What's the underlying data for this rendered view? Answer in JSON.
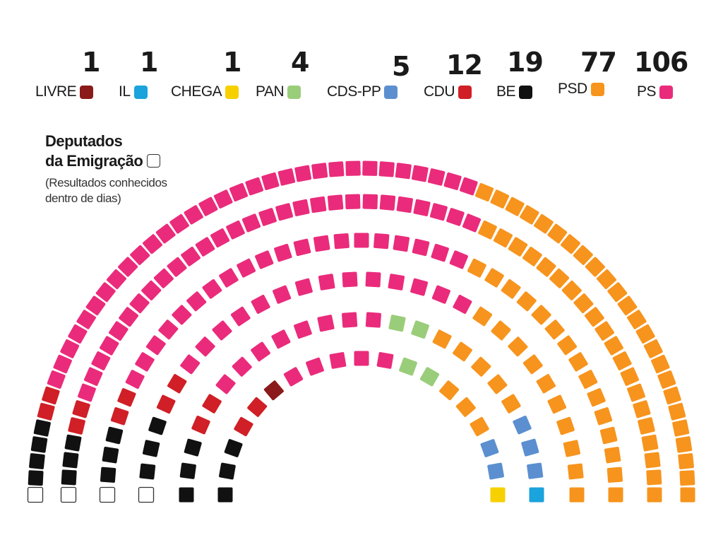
{
  "chart_data": {
    "type": "hemicycle",
    "title": "",
    "total_seats": 230,
    "rows": 6,
    "parties": [
      {
        "name": "LIVRE",
        "seats": 1,
        "color": "#8b1a1a"
      },
      {
        "name": "IL",
        "seats": 1,
        "color": "#1aa3dc"
      },
      {
        "name": "CHEGA",
        "seats": 1,
        "color": "#f7d000"
      },
      {
        "name": "PAN",
        "seats": 4,
        "color": "#9acd7a"
      },
      {
        "name": "CDS-PP",
        "seats": 5,
        "color": "#5b8fd0"
      },
      {
        "name": "CDU",
        "seats": 12,
        "color": "#d01f26"
      },
      {
        "name": "BE",
        "seats": 19,
        "color": "#111111"
      },
      {
        "name": "PSD",
        "seats": 77,
        "color": "#f7941d"
      },
      {
        "name": "PS",
        "seats": 106,
        "color": "#ea2b7b"
      }
    ],
    "emigration": {
      "seats": 4,
      "color": "#ffffff",
      "border": "#333333"
    }
  },
  "emigration_label": {
    "title_line1": "Deputados",
    "title_line2": "da Emigração",
    "note_line1": "(Resultados conhecidos",
    "note_line2": "dentro de dias)"
  }
}
